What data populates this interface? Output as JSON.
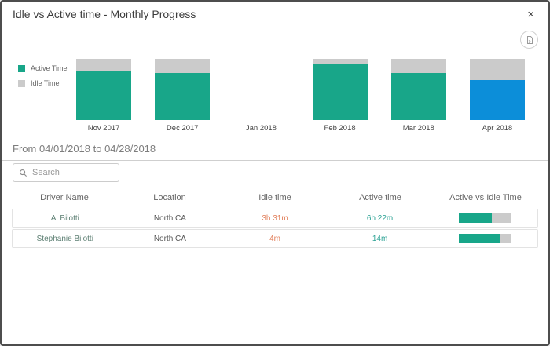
{
  "modal": {
    "title": "Idle vs Active time - Monthly Progress",
    "close_label": "×"
  },
  "toolbar": {
    "export_icon": "export-report-icon"
  },
  "chart_data": {
    "type": "bar",
    "stacked": true,
    "stacked_to_100_percent": true,
    "categories": [
      "Nov 2017",
      "Dec 2017",
      "Jan 2018",
      "Feb 2018",
      "Mar 2018",
      "Apr 2018"
    ],
    "series": [
      {
        "name": "Active Time",
        "color": "#18a689",
        "values_pct": [
          80,
          77,
          null,
          91,
          77,
          65
        ]
      },
      {
        "name": "Idle Time",
        "color": "#cbcbcb",
        "values_pct": [
          20,
          23,
          null,
          9,
          23,
          35
        ]
      }
    ],
    "highlighted_category": "Apr 2018",
    "highlight_color": "#0c8ed9",
    "legend_position": "left",
    "axes_hidden": true
  },
  "period": {
    "label": "From 04/01/2018 to 04/28/2018"
  },
  "search": {
    "placeholder": "Search",
    "value": ""
  },
  "table": {
    "columns": [
      "Driver Name",
      "Location",
      "Idle time",
      "Active time",
      "Active vs Idle Time"
    ],
    "rows": [
      {
        "driver_name": "Al Bilotti",
        "location": "North CA",
        "idle_time": "3h 31m",
        "active_time": "6h 22m",
        "active_pct": 64
      },
      {
        "driver_name": "Stephanie Bilotti",
        "location": "North CA",
        "idle_time": "4m",
        "active_time": "14m",
        "active_pct": 78
      }
    ]
  },
  "colors": {
    "active": "#18a689",
    "idle": "#cbcbcb",
    "highlight": "#0c8ed9",
    "idle_value_text": "#e2805c",
    "active_value_text": "#2ba294"
  }
}
